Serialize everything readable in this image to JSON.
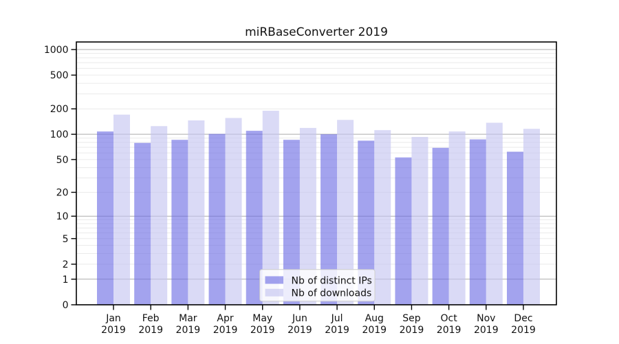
{
  "chart_data": {
    "type": "bar",
    "title": "miRBaseConverter 2019",
    "x": {
      "months": [
        "Jan",
        "Feb",
        "Mar",
        "Apr",
        "May",
        "Jun",
        "Jul",
        "Aug",
        "Sep",
        "Oct",
        "Nov",
        "Dec"
      ],
      "year": "2019"
    },
    "series": [
      {
        "name": "Nb of distinct IPs",
        "fill": "#6a6ae4",
        "fill_opacity": 0.62,
        "values": [
          108,
          79,
          86,
          101,
          110,
          86,
          100,
          84,
          53,
          69,
          87,
          62
        ]
      },
      {
        "name": "Nb of downloads",
        "fill": "#c3c3f0",
        "fill_opacity": 0.62,
        "values": [
          171,
          125,
          146,
          156,
          190,
          119,
          148,
          112,
          93,
          108,
          137,
          116
        ]
      }
    ],
    "yscale": "symlog",
    "yticks": [
      0,
      1,
      2,
      5,
      10,
      20,
      50,
      100,
      200,
      500,
      1000
    ],
    "ylim": [
      0,
      1240
    ],
    "grid": true,
    "legend": {
      "position": "lower-center",
      "entries": [
        "Nb of distinct IPs",
        "Nb of downloads"
      ]
    },
    "colors": {
      "major_grid": "#ababab",
      "minor_grid": "#eaeaea",
      "spine": "#000000",
      "tick_text": "#111111",
      "legend_border": "#cccccc",
      "legend_bg_alpha": 0.8
    }
  }
}
